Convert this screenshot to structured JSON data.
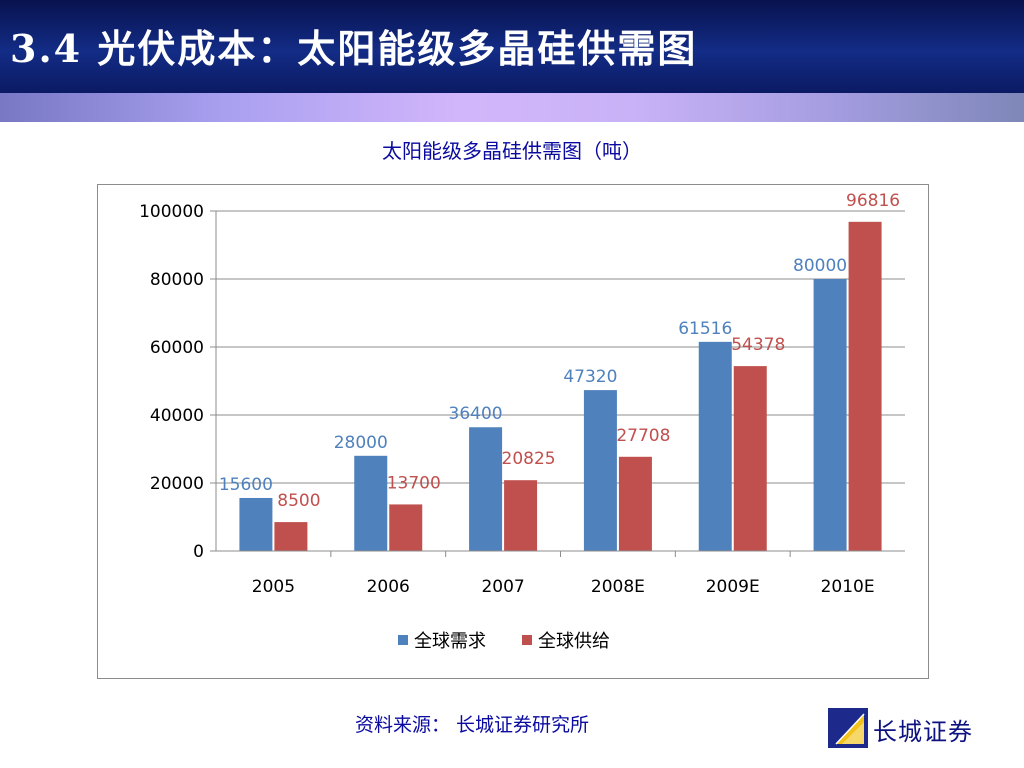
{
  "slide": {
    "title": "3.4 光伏成本：太阳能级多晶硅供需图",
    "source": "资料来源： 长城证券研究所",
    "logo_text": "长城证券"
  },
  "colors": {
    "demand": "#4f81bd",
    "supply": "#c0504d",
    "demand_label": "#4f81bd",
    "supply_label": "#c0504d",
    "grid": "#8c8c8c"
  },
  "chart_data": {
    "type": "bar",
    "title": "太阳能级多晶硅供需图（吨）",
    "categories": [
      "2005",
      "2006",
      "2007",
      "2008E",
      "2009E",
      "2010E"
    ],
    "series": [
      {
        "name": "全球需求",
        "values": [
          15600,
          28000,
          36400,
          47320,
          61516,
          80000
        ]
      },
      {
        "name": "全球供给",
        "values": [
          8500,
          13700,
          20825,
          27708,
          54378,
          96816
        ]
      }
    ],
    "ylim": [
      0,
      100000
    ],
    "yticks": [
      "0",
      "20000",
      "40000",
      "60000",
      "80000",
      "100000"
    ],
    "grid": true,
    "legend": "bottom",
    "data_labels": true
  }
}
